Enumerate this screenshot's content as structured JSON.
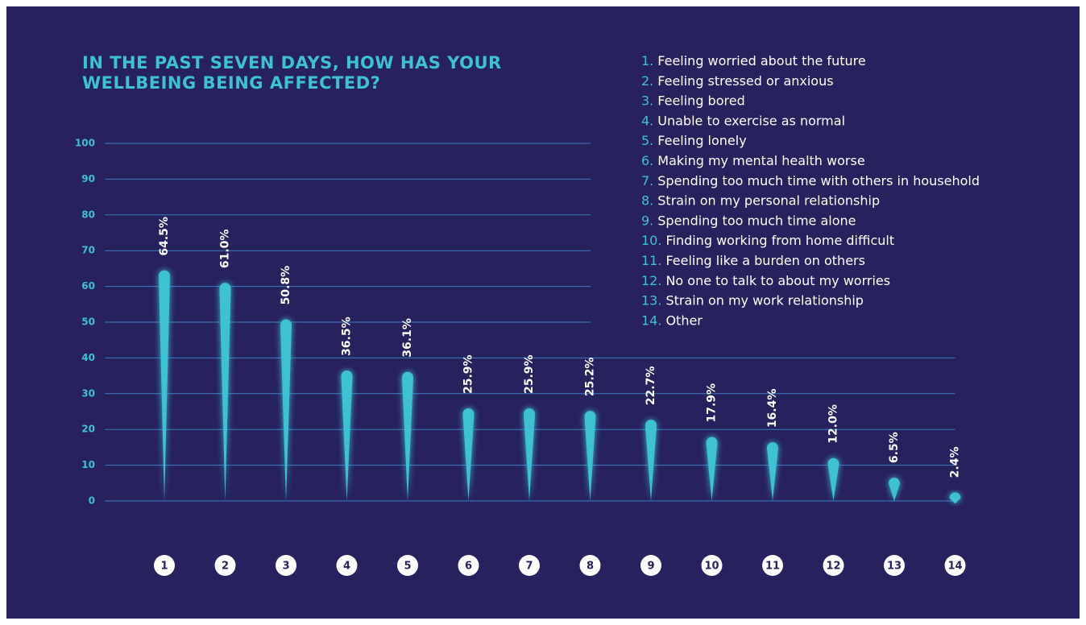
{
  "chart_data": {
    "type": "drop",
    "title": [
      "IN THE PAST SEVEN DAYS, HOW HAS YOUR",
      "WELLBEING BEING AFFECTED?"
    ],
    "categories": [
      "1",
      "2",
      "3",
      "4",
      "5",
      "6",
      "7",
      "8",
      "9",
      "10",
      "11",
      "12",
      "13",
      "14"
    ],
    "values": [
      64.5,
      61.0,
      50.8,
      36.5,
      36.1,
      25.9,
      25.9,
      25.2,
      22.7,
      17.9,
      16.4,
      12.0,
      6.5,
      2.4
    ],
    "value_labels": [
      "64.5%",
      "61.0%",
      "50.8%",
      "36.5%",
      "36.1%",
      "25.9%",
      "25.9%",
      "25.2%",
      "22.7%",
      "17.9%",
      "16.4%",
      "12.0%",
      "6.5%",
      "2.4%"
    ],
    "color": "#3ec1d3",
    "ylim": [
      0,
      100
    ],
    "yticks": [
      0,
      10,
      20,
      30,
      40,
      50,
      60,
      70,
      80,
      90,
      100
    ],
    "grid": true,
    "legend": [
      {
        "number": "1.",
        "label": "Feeling worried about the future"
      },
      {
        "number": "2.",
        "label": "Feeling stressed or anxious"
      },
      {
        "number": "3.",
        "label": "Feeling bored"
      },
      {
        "number": "4.",
        "label": "Unable to exercise as normal"
      },
      {
        "number": "5.",
        "label": "Feeling lonely"
      },
      {
        "number": "6.",
        "label": "Making my mental health worse"
      },
      {
        "number": "7.",
        "label": "Spending too much time with others in household"
      },
      {
        "number": "8.",
        "label": "Strain on my personal relationship"
      },
      {
        "number": "9.",
        "label": "Spending too much time alone"
      },
      {
        "number": "10.",
        "label": "Finding working from home difficult"
      },
      {
        "number": "11.",
        "label": "Feeling like a burden on others"
      },
      {
        "number": "12.",
        "label": "No one to talk to about my worries"
      },
      {
        "number": "13.",
        "label": "Strain on my work relationship"
      },
      {
        "number": "14.",
        "label": "Other"
      }
    ]
  }
}
